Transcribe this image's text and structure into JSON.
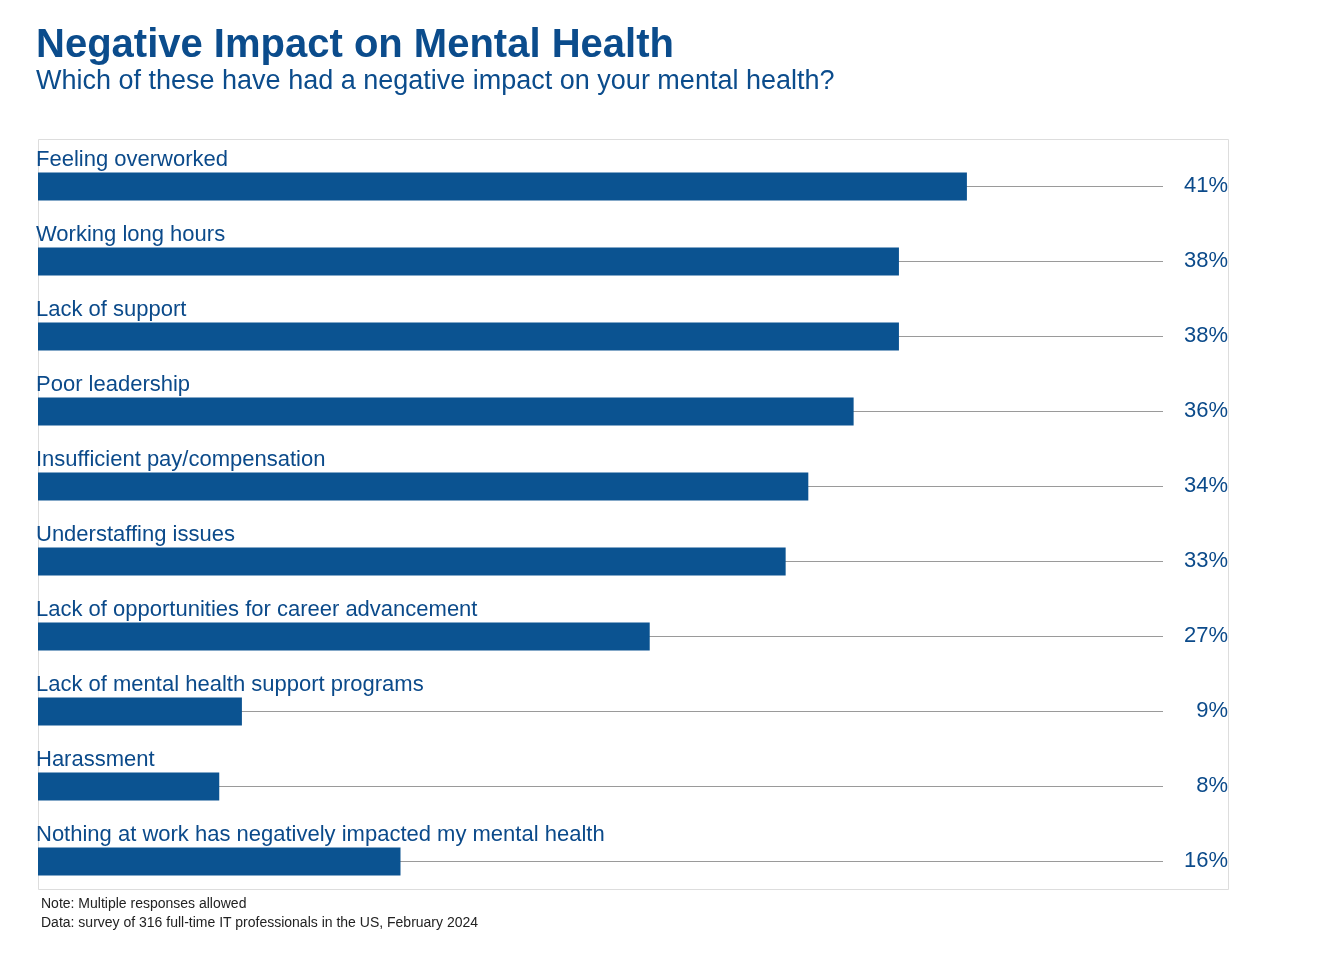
{
  "chart_data": {
    "type": "bar",
    "orientation": "horizontal",
    "title": "Negative Impact on Mental Health",
    "subtitle": "Which of these have had a negative impact on your mental health?",
    "categories": [
      "Feeling overworked",
      "Working long hours",
      "Lack of support",
      "Poor leadership",
      "Insufficient pay/compensation",
      "Understaffing issues",
      "Lack of opportunities for career advancement",
      "Lack of mental health support programs",
      "Harassment",
      "Nothing at work has negatively impacted my mental health"
    ],
    "values": [
      41,
      38,
      38,
      36,
      34,
      33,
      27,
      9,
      8,
      16
    ],
    "value_labels": [
      "41%",
      "38%",
      "38%",
      "36%",
      "34%",
      "33%",
      "27%",
      "9%",
      "8%",
      "16%"
    ],
    "color": "#0b5391",
    "annotations": [
      "Note: Multiple responses allowed",
      "Data: survey of 316 full-time IT professionals in the US, February 2024"
    ]
  }
}
